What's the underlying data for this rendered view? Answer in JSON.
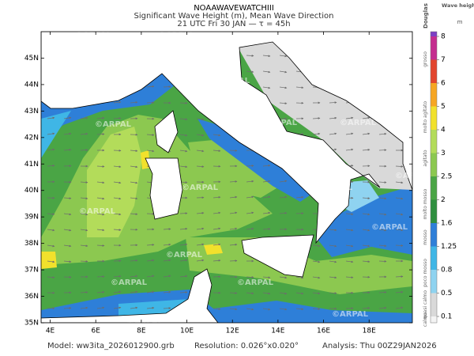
{
  "map": {
    "title": "NOAAWAVEWATCHIII",
    "subtitle": "Significant Wave Height (m), Mean Wave Direction",
    "time": "21 UTC Fri 30 JAN  —  τ = 45h",
    "watermark": "©ARPAL",
    "xlim": [
      3.6,
      19.9
    ],
    "ylim": [
      35,
      46
    ],
    "xticks": [
      {
        "value": 4,
        "label": "4E"
      },
      {
        "value": 6,
        "label": "6E"
      },
      {
        "value": 8,
        "label": "8E"
      },
      {
        "value": 10,
        "label": "10E"
      },
      {
        "value": 12,
        "label": "12E"
      },
      {
        "value": 14,
        "label": "14E"
      },
      {
        "value": 16,
        "label": "16E"
      },
      {
        "value": 18,
        "label": "18E"
      }
    ],
    "yticks": [
      {
        "value": 35,
        "label": "35N"
      },
      {
        "value": 36,
        "label": "36N"
      },
      {
        "value": 37,
        "label": "37N"
      },
      {
        "value": 38,
        "label": "38N"
      },
      {
        "value": 39,
        "label": "39N"
      },
      {
        "value": 40,
        "label": "40N"
      },
      {
        "value": 41,
        "label": "41N"
      },
      {
        "value": 42,
        "label": "42N"
      },
      {
        "value": 43,
        "label": "43N"
      },
      {
        "value": 44,
        "label": "44N"
      },
      {
        "value": 45,
        "label": "45N"
      }
    ]
  },
  "colorbar": {
    "header": "Douglas",
    "unit_title": "Wave height",
    "unit": "m",
    "levels": [
      0.1,
      0.5,
      0.8,
      1.25,
      1.6,
      2,
      2.5,
      3,
      4,
      5,
      6,
      7,
      8
    ],
    "colors": [
      "#f4f4f4",
      "#d9d9d9",
      "#8fd3f0",
      "#3fb6e6",
      "#2e7fd8",
      "#2f8f3f",
      "#4aa545",
      "#8cc850",
      "#b3dc5a",
      "#f1e12c",
      "#f6a623",
      "#e2452e",
      "#c42d8f",
      "#7b3fc4"
    ],
    "sea_states": [
      "calmo",
      "quasi calmo",
      "poco mosso",
      "mosso",
      "molto mosso",
      "agitato",
      "molto agitato",
      "grosso"
    ]
  },
  "footer": {
    "model": "Model: ww3ita_2026012900.grb",
    "resolution": "Resolution: 0.026°x0.020°",
    "analysis": "Analysis: Thu 00Z29JAN2026"
  }
}
